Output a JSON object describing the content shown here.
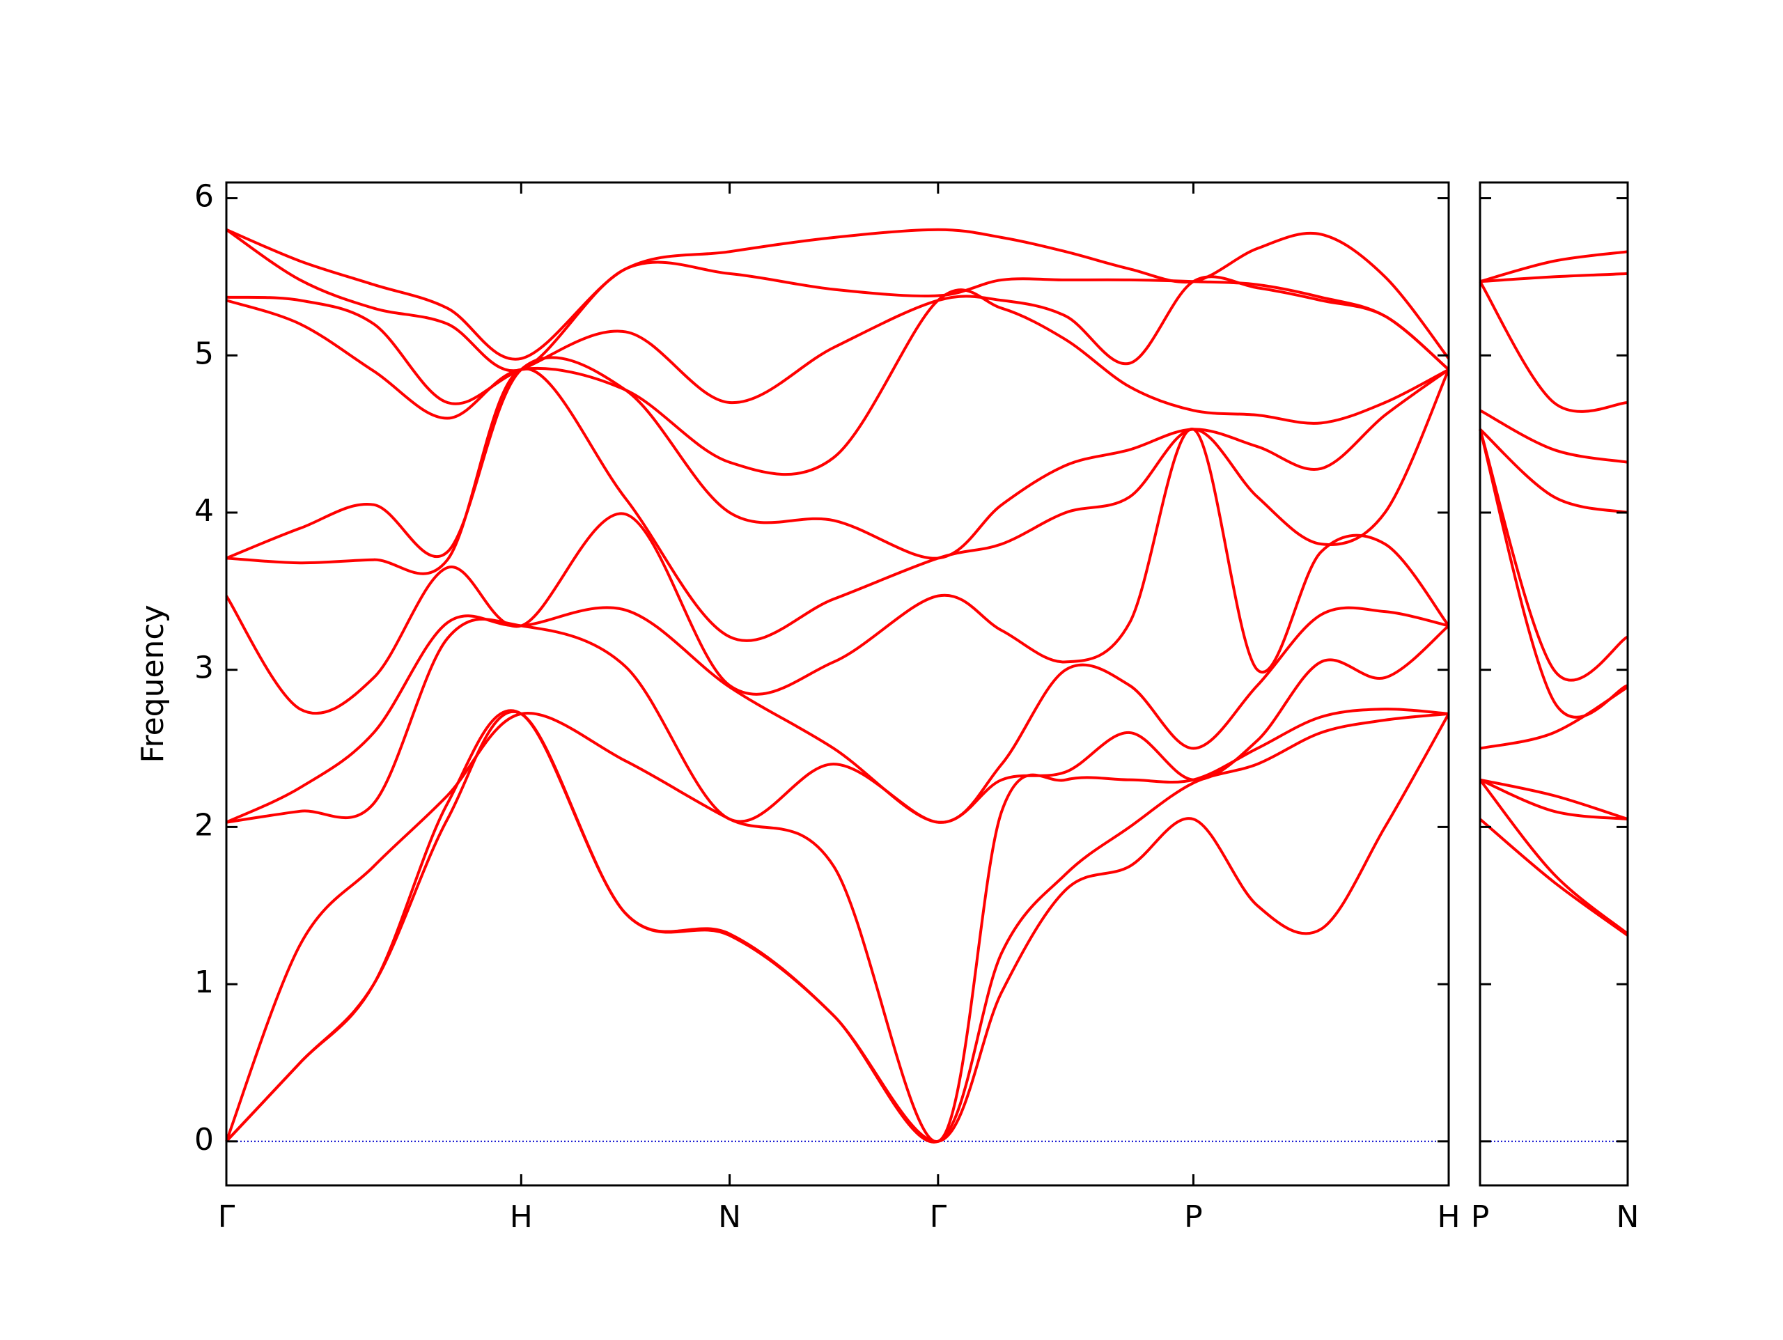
{
  "chart_data": [
    {
      "type": "line",
      "ylabel": "Frequency",
      "x": [
        0,
        0.25,
        0.5,
        0.75,
        1,
        1.354,
        1.707,
        2.06,
        2.414,
        2.63,
        2.847,
        3.064,
        3.28,
        3.497,
        3.713,
        3.93,
        4.146
      ],
      "xlim": [
        0,
        4.146
      ],
      "xticks": [
        {
          "value": 0,
          "label": "Γ"
        },
        {
          "value": 1,
          "label": "H"
        },
        {
          "value": 1.707,
          "label": "N"
        },
        {
          "value": 2.414,
          "label": "Γ"
        },
        {
          "value": 3.28,
          "label": "P"
        },
        {
          "value": 4.146,
          "label": "H"
        }
      ],
      "ylim": [
        -0.28,
        6.1
      ],
      "yticks": [
        0,
        1,
        2,
        3,
        4,
        5,
        6
      ],
      "ytick_labels": true,
      "hline": {
        "value": 0,
        "color": "#0000cc"
      },
      "series": [
        {
          "color": "#ff0000",
          "values": [
            0,
            0.5,
            1.0,
            2.05,
            2.72,
            1.45,
            1.31,
            0.8,
            0,
            0.95,
            1.6,
            1.75,
            2.05,
            1.5,
            1.35,
            2.0,
            2.72
          ]
        },
        {
          "color": "#ff0000",
          "values": [
            0,
            0.5,
            1.0,
            2.15,
            2.72,
            1.45,
            1.32,
            0.8,
            0,
            1.2,
            1.7,
            2.0,
            2.28,
            2.4,
            2.6,
            2.68,
            2.72
          ]
        },
        {
          "color": "#ff0000",
          "values": [
            0,
            1.25,
            1.75,
            2.2,
            2.72,
            2.42,
            2.05,
            1.75,
            0,
            2.1,
            2.3,
            2.3,
            2.3,
            2.5,
            2.7,
            2.75,
            2.72
          ]
        },
        {
          "color": "#ff0000",
          "values": [
            2.03,
            2.1,
            2.15,
            3.2,
            3.28,
            3.02,
            2.05,
            2.4,
            2.03,
            2.3,
            2.35,
            2.6,
            2.3,
            2.55,
            3.05,
            2.95,
            3.28
          ]
        },
        {
          "color": "#ff0000",
          "values": [
            2.03,
            2.25,
            2.6,
            3.3,
            3.28,
            3.38,
            2.89,
            2.5,
            2.03,
            2.4,
            3.0,
            2.9,
            2.5,
            2.9,
            3.35,
            3.37,
            3.28
          ]
        },
        {
          "color": "#ff0000",
          "values": [
            3.47,
            2.75,
            2.95,
            3.65,
            3.28,
            3.99,
            2.9,
            3.05,
            3.47,
            3.25,
            3.05,
            3.3,
            4.53,
            3.0,
            3.75,
            3.8,
            3.28
          ]
        },
        {
          "color": "#ff0000",
          "values": [
            3.71,
            3.68,
            3.7,
            3.7,
            4.91,
            4.09,
            3.21,
            3.45,
            3.71,
            3.8,
            4.0,
            4.1,
            4.53,
            4.1,
            3.8,
            4.0,
            4.91
          ]
        },
        {
          "color": "#ff0000",
          "values": [
            3.71,
            3.9,
            4.05,
            3.75,
            4.91,
            4.78,
            4.0,
            3.95,
            3.71,
            4.05,
            4.3,
            4.4,
            4.53,
            4.42,
            4.28,
            4.62,
            4.91
          ]
        },
        {
          "color": "#ff0000",
          "values": [
            5.35,
            5.2,
            4.9,
            4.6,
            4.91,
            4.78,
            4.32,
            4.35,
            5.35,
            5.3,
            5.1,
            4.8,
            4.65,
            4.62,
            4.57,
            4.7,
            4.91
          ]
        },
        {
          "color": "#ff0000",
          "values": [
            5.37,
            5.35,
            5.2,
            4.7,
            4.91,
            5.15,
            4.7,
            5.05,
            5.35,
            5.35,
            5.25,
            4.95,
            5.47,
            5.43,
            5.35,
            5.25,
            4.91
          ]
        },
        {
          "color": "#ff0000",
          "values": [
            5.8,
            5.48,
            5.3,
            5.2,
            4.91,
            5.55,
            5.52,
            5.42,
            5.38,
            5.48,
            5.48,
            5.48,
            5.47,
            5.45,
            5.37,
            5.25,
            4.91
          ]
        },
        {
          "color": "#ff0000",
          "values": [
            5.8,
            5.6,
            5.45,
            5.3,
            4.98,
            5.55,
            5.66,
            5.75,
            5.8,
            5.75,
            5.66,
            5.55,
            5.47,
            5.68,
            5.77,
            5.5,
            4.98
          ]
        }
      ]
    },
    {
      "type": "line",
      "x": [
        3.28,
        3.53,
        3.78
      ],
      "xlim": [
        3.28,
        3.78
      ],
      "xticks": [
        {
          "value": 3.28,
          "label": "P"
        },
        {
          "value": 3.78,
          "label": "N"
        }
      ],
      "ylim": [
        -0.28,
        6.1
      ],
      "yticks": [
        0,
        1,
        2,
        3,
        4,
        5,
        6
      ],
      "ytick_labels": false,
      "hline": {
        "value": 0,
        "color": "#0000cc"
      },
      "series": [
        {
          "color": "#ff0000",
          "values": [
            2.05,
            1.65,
            1.31
          ]
        },
        {
          "color": "#ff0000",
          "values": [
            2.3,
            1.7,
            1.32
          ]
        },
        {
          "color": "#ff0000",
          "values": [
            2.3,
            2.1,
            2.05
          ]
        },
        {
          "color": "#ff0000",
          "values": [
            2.3,
            2.2,
            2.05
          ]
        },
        {
          "color": "#ff0000",
          "values": [
            2.5,
            2.6,
            2.89
          ]
        },
        {
          "color": "#ff0000",
          "values": [
            4.53,
            2.8,
            2.9
          ]
        },
        {
          "color": "#ff0000",
          "values": [
            4.53,
            3.0,
            3.21
          ]
        },
        {
          "color": "#ff0000",
          "values": [
            4.53,
            4.1,
            4.0
          ]
        },
        {
          "color": "#ff0000",
          "values": [
            4.65,
            4.4,
            4.32
          ]
        },
        {
          "color": "#ff0000",
          "values": [
            5.47,
            4.7,
            4.7
          ]
        },
        {
          "color": "#ff0000",
          "values": [
            5.47,
            5.5,
            5.52
          ]
        },
        {
          "color": "#ff0000",
          "values": [
            5.47,
            5.6,
            5.66
          ]
        }
      ]
    }
  ]
}
